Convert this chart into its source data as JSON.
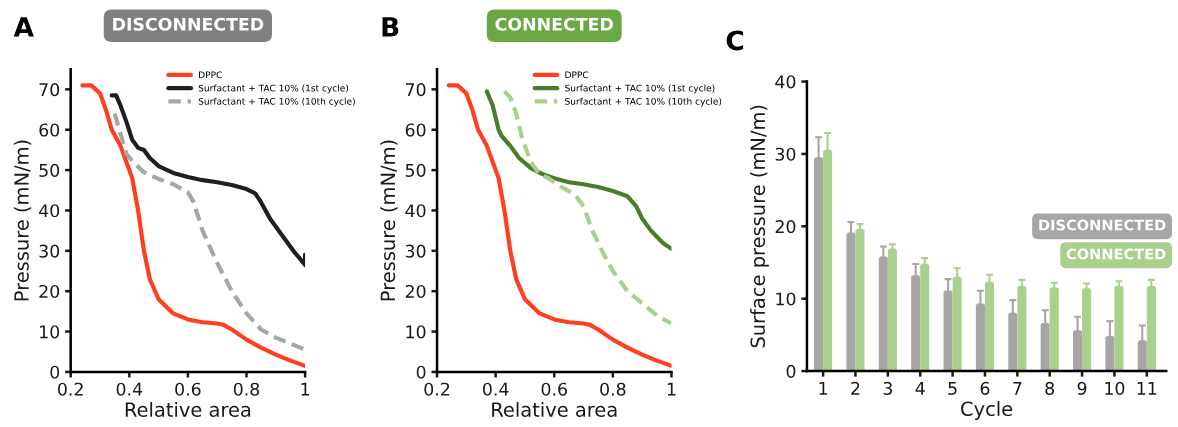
{
  "chart_data": [
    {
      "type": "line",
      "title": "DISCONNECTED",
      "xlabel": "Relative area",
      "ylabel": "Pressure (mN/m)",
      "annotations": [
        "A"
      ],
      "xlim": [
        0.2,
        1
      ],
      "ylim": [
        0,
        75
      ],
      "xticks": [
        0.2,
        0.4,
        0.6,
        0.8,
        1
      ],
      "yticks": [
        0,
        10,
        20,
        30,
        40,
        50,
        60,
        70
      ],
      "grid": false,
      "legend": "top right",
      "series": [
        {
          "name": "DPPC",
          "color": "#ff3f1f",
          "line_style": "solid",
          "x": [
            0.24,
            0.27,
            0.3,
            0.32,
            0.34,
            0.37,
            0.39,
            0.41,
            0.43,
            0.45,
            0.47,
            0.5,
            0.55,
            0.6,
            0.65,
            0.7,
            0.72,
            0.75,
            0.8,
            0.85,
            0.9,
            0.95,
            1.0
          ],
          "values": [
            71,
            71,
            69,
            65,
            60,
            56,
            52,
            48,
            40,
            30,
            23,
            18,
            14.5,
            13,
            12.3,
            12,
            11.7,
            10.5,
            8,
            6,
            4.3,
            2.8,
            1.5
          ]
        },
        {
          "name": "Surfactant + TAC 10% (1st cycle)",
          "color": "#1f1f1f",
          "line_style": "solid",
          "x": [
            0.34,
            0.355,
            0.37,
            0.39,
            0.41,
            0.43,
            0.45,
            0.47,
            0.5,
            0.55,
            0.6,
            0.65,
            0.7,
            0.75,
            0.8,
            0.83,
            0.85,
            0.88,
            0.92,
            0.96,
            1.0,
            1.0
          ],
          "values": [
            68.5,
            68.5,
            66,
            62,
            57.5,
            55.5,
            55,
            53,
            51,
            49.3,
            48.3,
            47.5,
            47,
            46.3,
            45.3,
            44.2,
            42,
            38,
            34,
            30,
            26.5,
            29
          ]
        },
        {
          "name": "Surfactant + TAC 10% (10th cycle)",
          "color": "#a6a6a6",
          "line_style": "dashed",
          "x": [
            0.35,
            0.37,
            0.39,
            0.42,
            0.45,
            0.5,
            0.55,
            0.6,
            0.62,
            0.65,
            0.7,
            0.75,
            0.8,
            0.85,
            0.9,
            0.95,
            1.0
          ],
          "values": [
            64,
            59,
            54,
            51.5,
            49.5,
            47.8,
            46.5,
            44.5,
            42,
            35,
            27,
            20,
            14.5,
            10.5,
            8.5,
            7,
            5.5
          ]
        }
      ]
    },
    {
      "type": "line",
      "title": "CONNECTED",
      "xlabel": "Relative area",
      "ylabel": "Pressure (mN/m)",
      "annotations": [
        "B"
      ],
      "xlim": [
        0.2,
        1
      ],
      "ylim": [
        0,
        75
      ],
      "xticks": [
        0.2,
        0.4,
        0.6,
        0.8,
        1
      ],
      "yticks": [
        0,
        10,
        20,
        30,
        40,
        50,
        60,
        70
      ],
      "grid": false,
      "legend": "top right",
      "series": [
        {
          "name": "DPPC",
          "color": "#ff3f1f",
          "line_style": "solid",
          "x": [
            0.24,
            0.27,
            0.3,
            0.32,
            0.34,
            0.37,
            0.39,
            0.41,
            0.43,
            0.45,
            0.47,
            0.5,
            0.55,
            0.6,
            0.65,
            0.7,
            0.72,
            0.75,
            0.8,
            0.85,
            0.9,
            0.95,
            1.0
          ],
          "values": [
            71,
            71,
            69,
            65,
            60,
            56,
            52,
            48,
            40,
            30,
            23,
            18,
            14.5,
            13,
            12.3,
            12,
            11.7,
            10.5,
            8,
            6,
            4.3,
            2.8,
            1.5
          ]
        },
        {
          "name": "Surfactant + TAC 10% (1st cycle)",
          "color": "#4a7d2a",
          "line_style": "solid",
          "x": [
            0.37,
            0.39,
            0.41,
            0.42,
            0.45,
            0.48,
            0.52,
            0.56,
            0.6,
            0.65,
            0.7,
            0.75,
            0.8,
            0.85,
            0.88,
            0.9,
            0.93,
            0.97,
            1.0
          ],
          "values": [
            69.5,
            66,
            60,
            58.5,
            56,
            53,
            50.5,
            49,
            48,
            47,
            46.5,
            45.8,
            44.8,
            43.5,
            41,
            38,
            35,
            32,
            30.5
          ]
        },
        {
          "name": "Surfactant + TAC 10% (10th cycle)",
          "color": "#a9d18e",
          "line_style": "dashed",
          "x": [
            0.43,
            0.45,
            0.47,
            0.49,
            0.52,
            0.55,
            0.58,
            0.62,
            0.67,
            0.7,
            0.73,
            0.77,
            0.8,
            0.85,
            0.9,
            0.95,
            1.0
          ],
          "values": [
            69.5,
            68,
            64,
            58,
            52,
            49,
            48,
            46,
            44,
            41,
            35,
            29,
            25,
            20,
            17,
            14,
            12
          ]
        }
      ]
    },
    {
      "type": "bar",
      "xlabel": "Cycle",
      "ylabel": "Surface pressure (mN/m)",
      "annotations": [
        "C"
      ],
      "categories": [
        "1",
        "2",
        "3",
        "4",
        "5",
        "6",
        "7",
        "8",
        "9",
        "10",
        "11"
      ],
      "ylim": [
        0,
        40
      ],
      "yticks": [
        0,
        10,
        20,
        30,
        40
      ],
      "grid": false,
      "legend": "right",
      "series": [
        {
          "name": "DISCONNECTED",
          "color": "#a6a6a6",
          "values": [
            29.4,
            19.0,
            15.7,
            13.1,
            11.0,
            9.2,
            7.9,
            6.5,
            5.5,
            4.7,
            4.1
          ],
          "errors": [
            [
              29.4,
              32.3
            ],
            [
              19.0,
              20.6
            ],
            [
              15.7,
              17.2
            ],
            [
              13.1,
              14.8
            ],
            [
              11.0,
              12.7
            ],
            [
              9.2,
              11.1
            ],
            [
              7.9,
              9.8
            ],
            [
              6.5,
              8.4
            ],
            [
              5.5,
              7.5
            ],
            [
              4.7,
              6.9
            ],
            [
              4.1,
              6.3
            ]
          ]
        },
        {
          "name": "CONNECTED",
          "color": "#a9d18e",
          "values": [
            30.4,
            19.5,
            16.8,
            14.7,
            12.9,
            12.2,
            11.6,
            11.4,
            11.3,
            11.6,
            11.6
          ],
          "errors": [
            [
              30.4,
              32.9
            ],
            [
              19.5,
              20.3
            ],
            [
              16.8,
              17.5
            ],
            [
              14.7,
              15.6
            ],
            [
              12.9,
              14.2
            ],
            [
              12.2,
              13.3
            ],
            [
              11.6,
              12.6
            ],
            [
              11.4,
              12.2
            ],
            [
              11.3,
              12.1
            ],
            [
              11.6,
              12.4
            ],
            [
              11.6,
              12.6
            ]
          ]
        }
      ]
    }
  ]
}
